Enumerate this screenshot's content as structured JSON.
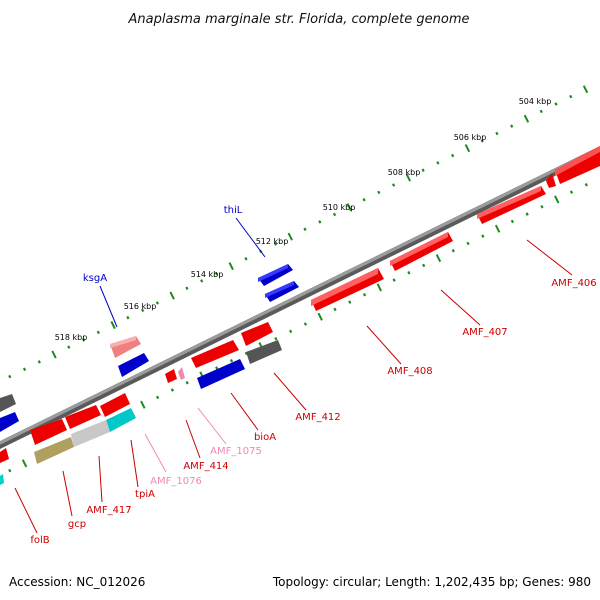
{
  "title": "Anaplasma marginale str. Florida, complete genome",
  "footer": {
    "accession": "Accession: NC_012026",
    "summary": "Topology: circular; Length: 1,202,435 bp; Genes: 980"
  },
  "colors": {
    "backbone": "#8a8a8a",
    "tick": "#1f8a1f",
    "gene_red": "#ee0000",
    "gene_blue": "#0000dd",
    "gene_gray": "#666666",
    "gene_pink": "#f08080",
    "gene_cyan": "#00d0d0",
    "gene_olive": "#b0a060",
    "gene_lightgray": "#c8c8c8",
    "label_red": "#cc0000",
    "label_blue": "#0000cc",
    "label_pink": "#f08ab0"
  },
  "tick_labels": [
    "504 kbp",
    "506 kbp",
    "508 kbp",
    "510 kbp",
    "512 kbp",
    "514 kbp",
    "516 kbp",
    "518 kbp"
  ],
  "gene_labels": [
    {
      "text": "thiL",
      "color": "blue"
    },
    {
      "text": "ksgA",
      "color": "blue"
    },
    {
      "text": "AMF_406",
      "color": "red"
    },
    {
      "text": "AMF_407",
      "color": "red"
    },
    {
      "text": "AMF_408",
      "color": "red"
    },
    {
      "text": "AMF_412",
      "color": "red"
    },
    {
      "text": "bioA",
      "color": "red"
    },
    {
      "text": "AMF_1075",
      "color": "pink"
    },
    {
      "text": "AMF_414",
      "color": "red"
    },
    {
      "text": "AMF_1076",
      "color": "pink"
    },
    {
      "text": "tpiA",
      "color": "red"
    },
    {
      "text": "AMF_417",
      "color": "red"
    },
    {
      "text": "gcp",
      "color": "red"
    },
    {
      "text": "folB",
      "color": "red"
    }
  ]
}
